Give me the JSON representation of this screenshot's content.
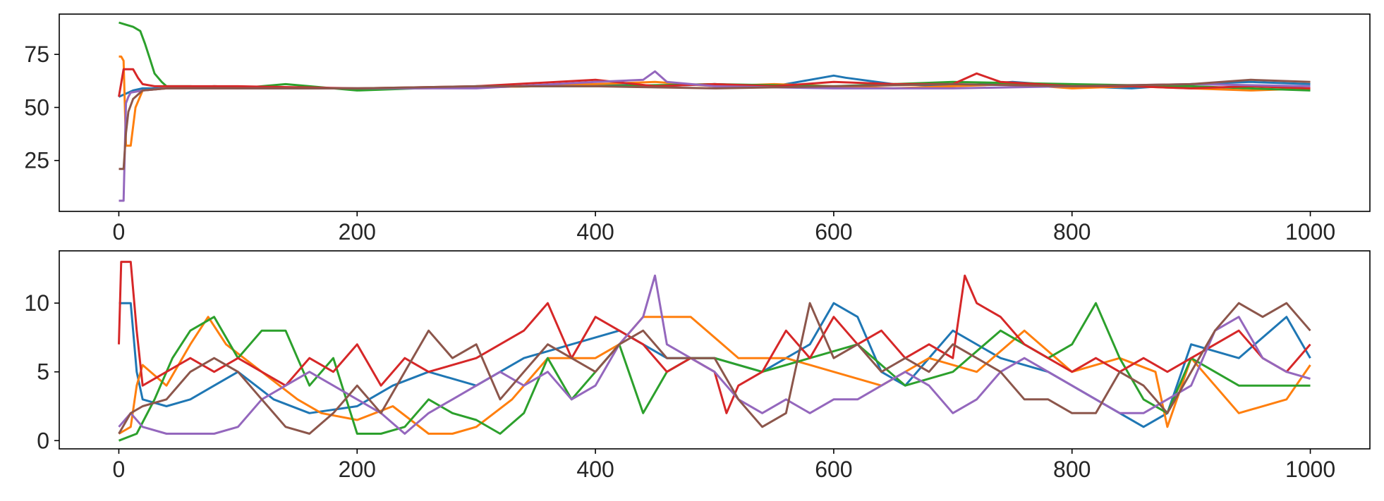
{
  "chart_data": [
    {
      "type": "line",
      "title": "",
      "xlabel": "",
      "ylabel": "",
      "xlim": [
        -50,
        1050
      ],
      "ylim": [
        1,
        94
      ],
      "xticks": [
        0,
        200,
        400,
        600,
        800,
        1000
      ],
      "yticks": [
        25,
        50,
        75
      ],
      "grid": false,
      "series": [
        {
          "color": "#1f77b4",
          "x": [
            0,
            4,
            8,
            12,
            20,
            40,
            80,
            150,
            250,
            350,
            400,
            450,
            500,
            550,
            600,
            610,
            650,
            700,
            750,
            800,
            850,
            900,
            950,
            1000
          ],
          "y": [
            55,
            56,
            57,
            58,
            59,
            59,
            60,
            59,
            59,
            60,
            61,
            60,
            61,
            60,
            65,
            64,
            61,
            60,
            62,
            60,
            59,
            61,
            62,
            61
          ]
        },
        {
          "color": "#ff7f0e",
          "x": [
            0,
            2,
            4,
            6,
            10,
            14,
            20,
            40,
            80,
            150,
            250,
            350,
            400,
            450,
            500,
            550,
            600,
            650,
            700,
            750,
            800,
            850,
            900,
            950,
            1000
          ],
          "y": [
            74,
            74,
            72,
            32,
            32,
            50,
            58,
            59,
            60,
            59,
            59,
            60,
            61,
            62,
            60,
            61,
            60,
            59,
            60,
            61,
            59,
            60,
            59,
            58,
            59
          ]
        },
        {
          "color": "#2ca02c",
          "x": [
            0,
            6,
            12,
            18,
            22,
            26,
            30,
            36,
            40,
            60,
            100,
            140,
            200,
            300,
            400,
            500,
            600,
            700,
            800,
            900,
            1000
          ],
          "y": [
            90,
            89,
            88,
            86,
            80,
            73,
            66,
            62,
            60,
            60,
            59,
            61,
            58,
            60,
            60,
            61,
            60,
            62,
            61,
            60,
            58
          ]
        },
        {
          "color": "#d62728",
          "x": [
            0,
            4,
            12,
            16,
            20,
            30,
            50,
            100,
            200,
            300,
            400,
            450,
            500,
            550,
            600,
            650,
            700,
            720,
            740,
            800,
            850,
            900,
            950,
            1000
          ],
          "y": [
            55,
            68,
            68,
            64,
            61,
            60,
            60,
            60,
            59,
            60,
            63,
            60,
            61,
            60,
            62,
            61,
            61,
            66,
            62,
            60,
            60,
            59,
            60,
            59
          ]
        },
        {
          "color": "#9467bd",
          "x": [
            0,
            4,
            6,
            8,
            10,
            20,
            40,
            100,
            200,
            300,
            400,
            440,
            450,
            460,
            500,
            600,
            700,
            800,
            900,
            1000
          ],
          "y": [
            6,
            6,
            52,
            55,
            57,
            58,
            59,
            59,
            59,
            59,
            62,
            63,
            67,
            62,
            60,
            59,
            59,
            60,
            61,
            60
          ]
        },
        {
          "color": "#8c564b",
          "x": [
            0,
            4,
            6,
            8,
            12,
            20,
            40,
            100,
            200,
            300,
            400,
            500,
            600,
            700,
            800,
            900,
            950,
            1000
          ],
          "y": [
            21,
            21,
            38,
            48,
            54,
            58,
            59,
            59,
            59,
            60,
            60,
            59,
            60,
            61,
            60,
            61,
            63,
            62
          ]
        }
      ]
    },
    {
      "type": "line",
      "title": "",
      "xlabel": "",
      "ylabel": "",
      "xlim": [
        -50,
        1050
      ],
      "ylim": [
        -0.6,
        13.8
      ],
      "xticks": [
        0,
        200,
        400,
        600,
        800,
        1000
      ],
      "yticks": [
        0,
        5,
        10
      ],
      "grid": false,
      "series": [
        {
          "color": "#1f77b4",
          "x": [
            0,
            5,
            10,
            15,
            20,
            40,
            60,
            80,
            100,
            130,
            160,
            200,
            230,
            260,
            300,
            340,
            380,
            420,
            460,
            500,
            540,
            580,
            600,
            620,
            640,
            660,
            700,
            740,
            780,
            820,
            860,
            880,
            900,
            940,
            980,
            1000
          ],
          "y": [
            10,
            10,
            10,
            5,
            3,
            2.5,
            3,
            4,
            5,
            3,
            2,
            2.5,
            4,
            5,
            4,
            6,
            7,
            8,
            6,
            6,
            5,
            7,
            10,
            9,
            5,
            4,
            8,
            6,
            5,
            3,
            1,
            2,
            7,
            6,
            9,
            6
          ]
        },
        {
          "color": "#ff7f0e",
          "x": [
            0,
            10,
            15,
            20,
            40,
            60,
            75,
            90,
            120,
            150,
            170,
            200,
            230,
            260,
            280,
            300,
            330,
            360,
            400,
            420,
            440,
            480,
            520,
            560,
            600,
            640,
            680,
            720,
            760,
            800,
            840,
            870,
            880,
            900,
            940,
            980,
            1000
          ],
          "y": [
            0.5,
            1,
            4,
            5.5,
            4,
            7,
            9,
            7,
            5,
            3,
            2,
            1.5,
            2.5,
            0.5,
            0.5,
            1,
            3,
            6,
            6,
            7,
            9,
            9,
            6,
            6,
            5,
            4,
            6,
            5,
            8,
            5,
            6,
            5,
            1,
            6,
            2,
            3,
            5.5
          ]
        },
        {
          "color": "#2ca02c",
          "x": [
            0,
            15,
            30,
            45,
            60,
            80,
            100,
            120,
            140,
            160,
            180,
            200,
            220,
            240,
            260,
            280,
            300,
            320,
            340,
            360,
            380,
            400,
            420,
            440,
            460,
            480,
            500,
            540,
            580,
            620,
            660,
            700,
            740,
            780,
            800,
            820,
            840,
            860,
            880,
            900,
            940,
            980,
            1000
          ],
          "y": [
            0,
            0.5,
            3,
            6,
            8,
            9,
            6,
            8,
            8,
            4,
            6,
            0.5,
            0.5,
            1,
            3,
            2,
            1.5,
            0.5,
            2,
            6,
            3,
            5,
            7,
            2,
            5,
            6,
            6,
            5,
            6,
            7,
            4,
            5,
            8,
            6,
            7,
            10,
            6,
            3,
            2,
            6,
            4,
            4,
            4
          ]
        },
        {
          "color": "#d62728",
          "x": [
            0,
            2,
            5,
            10,
            15,
            20,
            40,
            60,
            80,
            100,
            120,
            140,
            160,
            180,
            200,
            220,
            240,
            260,
            300,
            340,
            360,
            380,
            400,
            420,
            440,
            460,
            480,
            500,
            510,
            520,
            540,
            560,
            580,
            600,
            620,
            640,
            660,
            680,
            700,
            710,
            720,
            740,
            760,
            780,
            800,
            820,
            840,
            860,
            880,
            900,
            920,
            940,
            960,
            980,
            1000
          ],
          "y": [
            7,
            13,
            13,
            13,
            8,
            4,
            5,
            6,
            5,
            6,
            5,
            4,
            6,
            5,
            7,
            4,
            6,
            5,
            6,
            8,
            10,
            6,
            9,
            8,
            7,
            5,
            6,
            5,
            2,
            4,
            5,
            8,
            6,
            9,
            7,
            8,
            6,
            7,
            6,
            12,
            10,
            9,
            7,
            6,
            5,
            6,
            5,
            6,
            5,
            6,
            7,
            8,
            6,
            5,
            7
          ]
        },
        {
          "color": "#9467bd",
          "x": [
            0,
            10,
            20,
            40,
            60,
            80,
            100,
            120,
            140,
            160,
            180,
            200,
            220,
            240,
            260,
            280,
            300,
            320,
            340,
            360,
            380,
            400,
            420,
            440,
            450,
            460,
            480,
            500,
            520,
            540,
            560,
            580,
            600,
            620,
            640,
            660,
            680,
            700,
            720,
            740,
            760,
            780,
            800,
            820,
            840,
            860,
            880,
            900,
            920,
            940,
            960,
            980,
            1000
          ],
          "y": [
            1,
            2,
            1,
            0.5,
            0.5,
            0.5,
            1,
            3,
            4,
            5,
            4,
            3,
            2,
            0.5,
            2,
            3,
            4,
            5,
            4,
            5,
            3,
            4,
            7,
            9,
            12,
            7,
            6,
            5,
            3,
            2,
            3,
            2,
            3,
            3,
            4,
            5,
            4,
            2,
            3,
            5,
            6,
            5,
            4,
            3,
            2,
            2,
            3,
            4,
            8,
            9,
            6,
            5,
            4.5
          ]
        },
        {
          "color": "#8c564b",
          "x": [
            0,
            10,
            20,
            40,
            60,
            80,
            100,
            120,
            140,
            160,
            180,
            200,
            220,
            240,
            260,
            280,
            300,
            320,
            340,
            360,
            380,
            400,
            420,
            440,
            460,
            480,
            500,
            520,
            540,
            560,
            580,
            600,
            620,
            640,
            660,
            680,
            700,
            720,
            740,
            760,
            780,
            800,
            820,
            840,
            860,
            880,
            900,
            920,
            940,
            960,
            980,
            1000
          ],
          "y": [
            0.5,
            2,
            2.5,
            3,
            5,
            6,
            5,
            3,
            1,
            0.5,
            2,
            4,
            2,
            5,
            8,
            6,
            7,
            3,
            5,
            7,
            6,
            5,
            7,
            8,
            6,
            6,
            6,
            3,
            1,
            2,
            10,
            6,
            7,
            5,
            6,
            5,
            7,
            6,
            5,
            3,
            3,
            2,
            2,
            5,
            4,
            2,
            5,
            8,
            10,
            9,
            10,
            8
          ]
        }
      ]
    }
  ]
}
